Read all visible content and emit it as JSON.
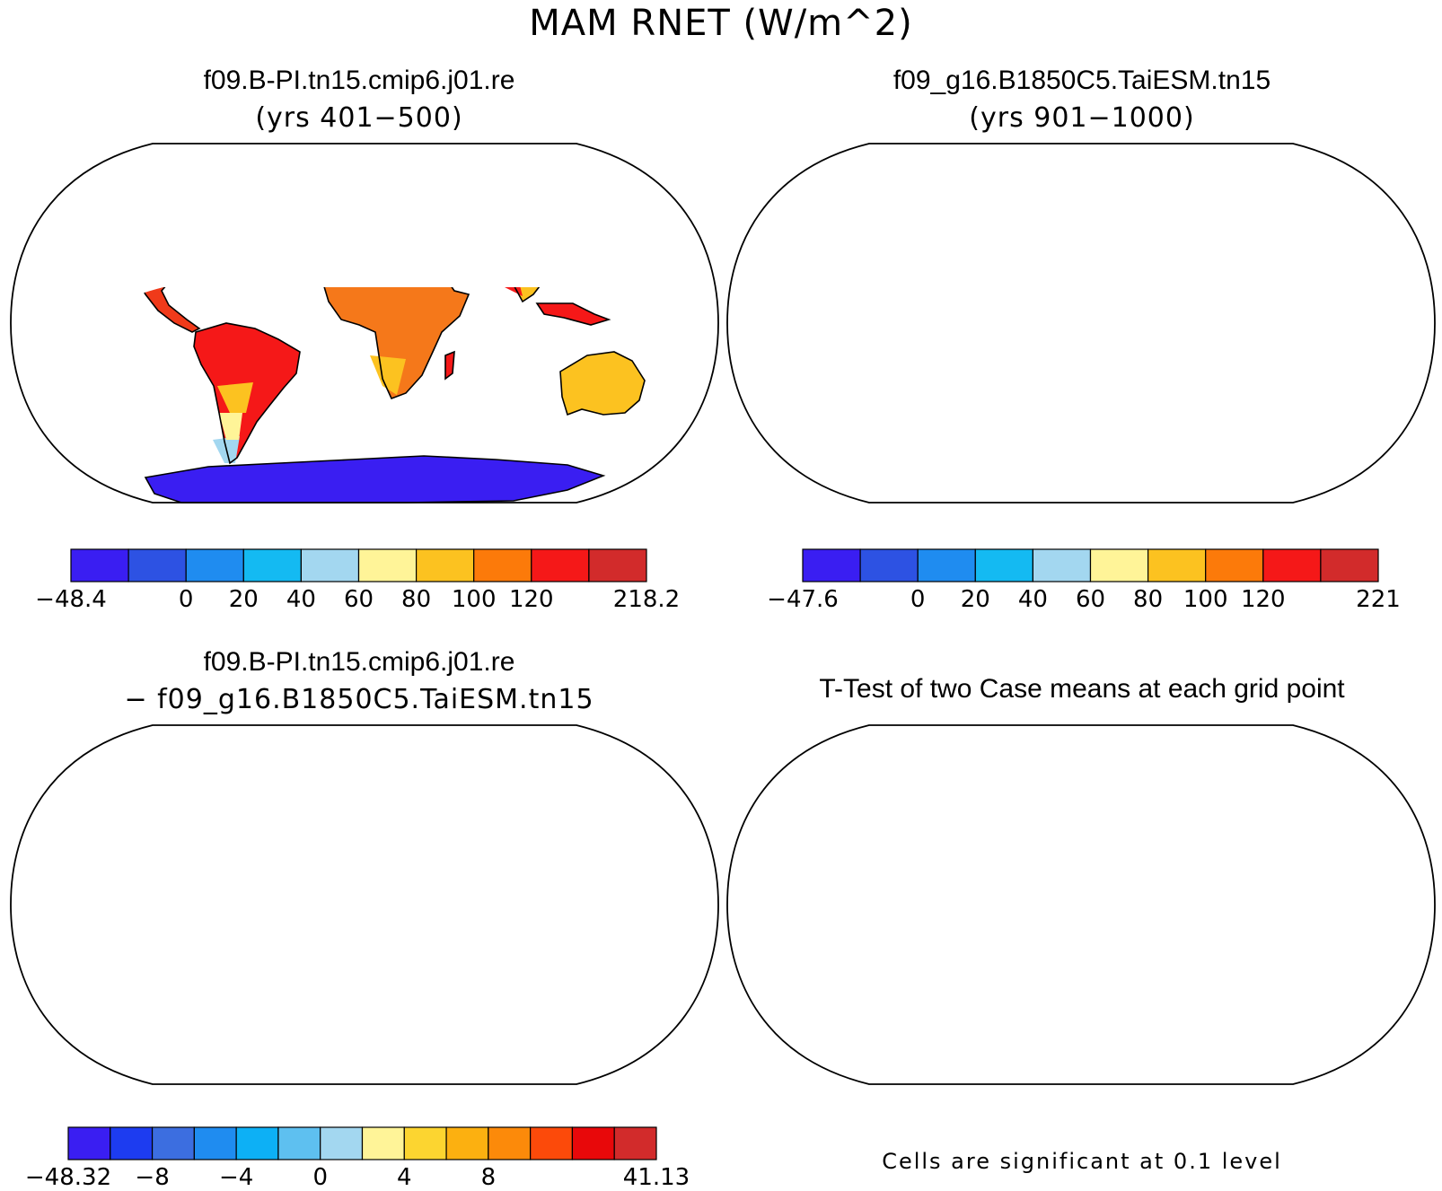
{
  "main_title": "MAM RNET (W/m^2)",
  "panels": [
    {
      "id": "case1",
      "title": "f09.B-PI.tn15.cmip6.j01.re",
      "subtitle": "(yrs 401−500)",
      "colorbar": {
        "colors": [
          "#3a1ef2",
          "#2d52e3",
          "#1f8cf0",
          "#14baf2",
          "#a3d7f0",
          "#fff498",
          "#fcc220",
          "#fc7a0a",
          "#f51818",
          "#d22b2b"
        ],
        "labels": [
          "−48.4",
          "",
          "0",
          "20",
          "40",
          "60",
          "80",
          "100",
          "120",
          "",
          "218.2"
        ]
      }
    },
    {
      "id": "case2",
      "title": "f09_g16.B1850C5.TaiESM.tn15",
      "subtitle": "(yrs 901−1000)",
      "colorbar": {
        "colors": [
          "#3a1ef2",
          "#2d52e3",
          "#1f8cf0",
          "#14baf2",
          "#a3d7f0",
          "#fff498",
          "#fcc220",
          "#fc7a0a",
          "#f51818",
          "#d22b2b"
        ],
        "labels": [
          "−47.6",
          "",
          "0",
          "20",
          "40",
          "60",
          "80",
          "100",
          "120",
          "",
          "221"
        ]
      }
    },
    {
      "id": "diff",
      "title": "f09.B-PI.tn15.cmip6.j01.re",
      "subtitle": "− f09_g16.B1850C5.TaiESM.tn15",
      "colorbar": {
        "colors": [
          "#3a1ef2",
          "#1d3cf0",
          "#3c6ee0",
          "#1f8cf0",
          "#0db0f5",
          "#5ec0f0",
          "#a3d7f0",
          "#fff498",
          "#fcd530",
          "#fcb010",
          "#fc8a0a",
          "#fc4a0a",
          "#e8080a",
          "#d22b2b"
        ],
        "labels": [
          "−48.32",
          "",
          "−8",
          "",
          "−4",
          "",
          "0",
          "",
          "4",
          "",
          "8",
          "",
          "",
          "",
          "41.13"
        ]
      }
    },
    {
      "id": "ttest",
      "title": "T-Test of two Case means at each grid point",
      "footnote": "Cells are significant at 0.1 level",
      "fill_color": "#f00a0a"
    }
  ]
}
